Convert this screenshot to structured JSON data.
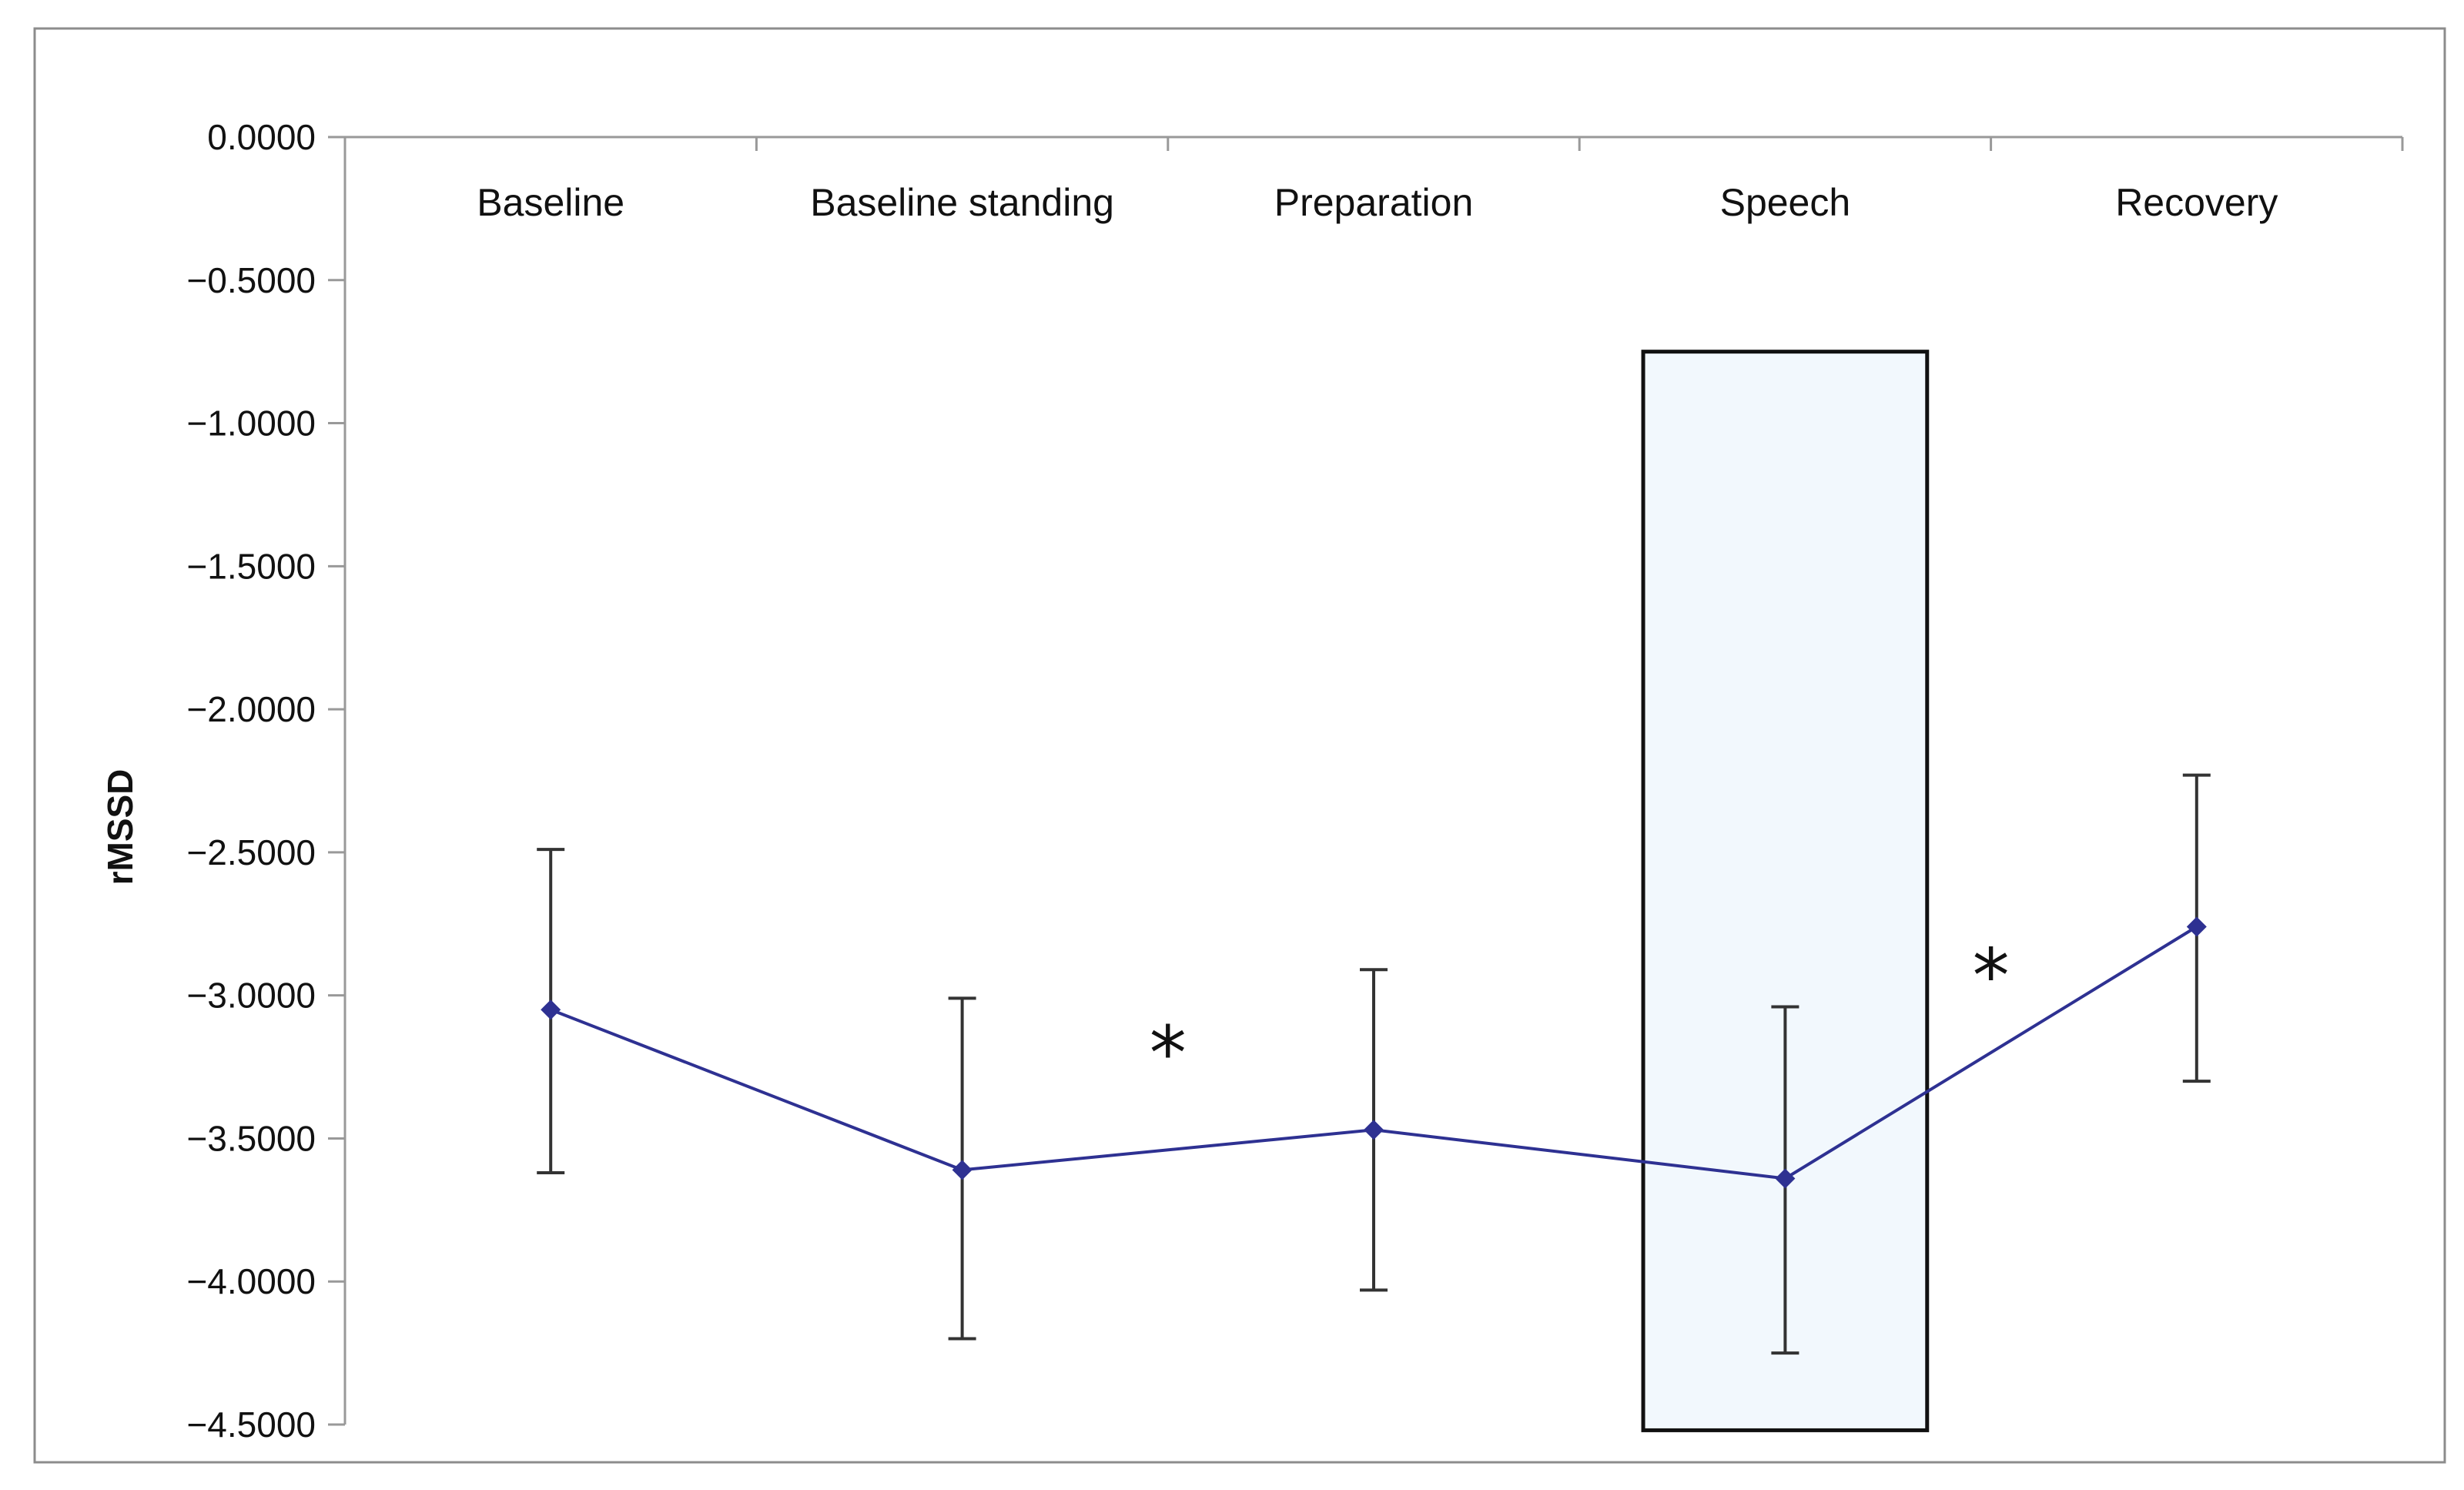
{
  "chart_data": {
    "type": "line",
    "ylabel": "rMSSD",
    "xlabel": "",
    "ylim": [
      -4.5,
      0
    ],
    "yticks": [
      0,
      -0.5,
      -1,
      -1.5,
      -2,
      -2.5,
      -3,
      -3.5,
      -4,
      -4.5
    ],
    "ytick_labels": [
      "0.0000",
      "−0.5000",
      "−1.0000",
      "−1.5000",
      "−2.0000",
      "−2.5000",
      "−3.0000",
      "−3.5000",
      "−4.0000",
      "−4.5000"
    ],
    "categories": [
      "Baseline",
      "Baseline standing",
      "Preparation",
      "Speech",
      "Recovery"
    ],
    "series": [
      {
        "values": [
          -3.05,
          -3.61,
          -3.47,
          -3.64,
          -2.76
        ],
        "error_upper": [
          -2.49,
          -3.01,
          -2.91,
          -3.04,
          -2.23
        ],
        "error_lower": [
          -3.62,
          -4.2,
          -4.03,
          -4.25,
          -3.3
        ],
        "color": "#2e3192"
      }
    ],
    "highlight": {
      "category": "Speech",
      "from": -0.75,
      "to": -4.52,
      "color": "#f2f8fd"
    },
    "annotations": [
      {
        "text": "*",
        "between": [
          "Baseline standing",
          "Preparation"
        ],
        "y": -3.2
      },
      {
        "text": "*",
        "between": [
          "Speech",
          "Recovery"
        ],
        "y": -2.93
      }
    ],
    "grid": false,
    "legend": "none"
  }
}
